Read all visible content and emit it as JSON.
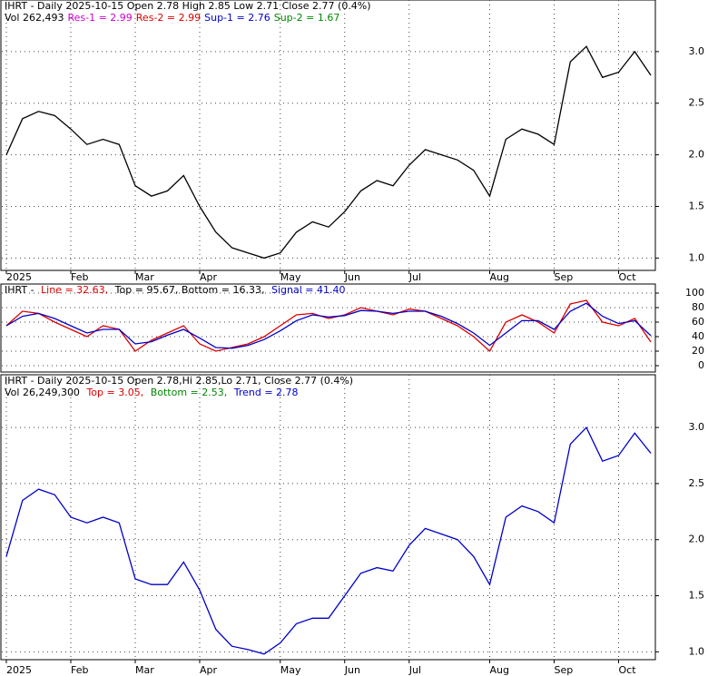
{
  "chart_data": [
    {
      "type": "line",
      "header": [
        [
          {
            "text": "IHRT - Daily 2025-10-15 Open 2.78  High 2.85  Low 2.71  Close 2.77 (0.4%)",
            "color": "#000000"
          }
        ],
        [
          {
            "text": "Vol 262,493",
            "color": "#000000"
          },
          {
            "text": "Res-1 = 2.99",
            "color": "#cc00cc"
          },
          {
            "text": "Res-2 = 2.99",
            "color": "#dd0000"
          },
          {
            "text": "Sup-1 = 2.76",
            "color": "#0000cc"
          },
          {
            "text": "Sup-2 = 1.67",
            "color": "#008800"
          }
        ]
      ],
      "categories": [
        "2025",
        null,
        null,
        null,
        "Feb",
        null,
        null,
        null,
        "Mar",
        null,
        null,
        null,
        "Apr",
        null,
        null,
        null,
        null,
        "May",
        null,
        null,
        null,
        "Jun",
        null,
        null,
        null,
        "Jul",
        null,
        null,
        null,
        null,
        "Aug",
        null,
        null,
        null,
        "Sep",
        null,
        null,
        null,
        "Oct",
        null,
        null
      ],
      "series": [
        {
          "name": "Close",
          "color": "#000000",
          "values": [
            2.0,
            2.35,
            2.42,
            2.38,
            2.25,
            2.1,
            2.15,
            2.1,
            1.7,
            1.6,
            1.65,
            1.8,
            1.5,
            1.25,
            1.1,
            1.05,
            1.0,
            1.05,
            1.25,
            1.35,
            1.3,
            1.45,
            1.65,
            1.75,
            1.7,
            1.9,
            2.05,
            2.0,
            1.95,
            1.85,
            1.6,
            2.15,
            2.25,
            2.2,
            2.1,
            2.9,
            3.05,
            2.75,
            2.8,
            3.0,
            2.77
          ]
        }
      ],
      "ylim": [
        0.88,
        3.5
      ],
      "yticks": [
        {
          "value": 1.0,
          "label": "1.0"
        },
        1.5,
        {
          "value": 2.0,
          "label": "2.0"
        },
        2.5,
        {
          "value": 3.0,
          "label": "3.0"
        }
      ],
      "grid": true
    },
    {
      "type": "line",
      "header": [
        [
          {
            "text": "IHRT - ",
            "color": "#000000"
          },
          {
            "text": "Line = 32.63,",
            "color": "#dd0000"
          },
          {
            "text": " Top = 95.67, Bottom = 16.33, ",
            "color": "#000000"
          },
          {
            "text": "Signal = 41.40",
            "color": "#0000cc"
          }
        ]
      ],
      "series": [
        {
          "name": "Line",
          "color": "#dd0000",
          "values": [
            55,
            75,
            72,
            60,
            50,
            40,
            55,
            50,
            20,
            35,
            45,
            55,
            30,
            20,
            25,
            30,
            40,
            55,
            70,
            72,
            65,
            70,
            80,
            75,
            70,
            78,
            75,
            65,
            55,
            40,
            20,
            60,
            70,
            60,
            45,
            85,
            90,
            60,
            55,
            65,
            32.63
          ]
        },
        {
          "name": "Signal",
          "color": "#0000cc",
          "values": [
            55,
            68,
            72,
            65,
            55,
            45,
            50,
            50,
            30,
            33,
            42,
            50,
            38,
            25,
            24,
            28,
            36,
            48,
            62,
            70,
            67,
            69,
            76,
            75,
            72,
            75,
            75,
            68,
            58,
            45,
            28,
            45,
            62,
            62,
            50,
            75,
            86,
            68,
            58,
            62,
            41.4
          ]
        }
      ],
      "ylim": [
        -8.75,
        112.5
      ],
      "yticks": [
        0,
        20,
        40,
        60,
        80,
        100
      ],
      "grid": true
    },
    {
      "type": "line",
      "header": [
        [
          {
            "text": "IHRT - Daily 2025-10-15 Open 2.78,Hi 2.85,Lo 2.71, Close 2.77 (0.4%)",
            "color": "#000000"
          }
        ],
        [
          {
            "text": "Vol 26,249,300 ",
            "color": "#000000"
          },
          {
            "text": "Top = 3.05,",
            "color": "#dd0000"
          },
          {
            "text": " Bottom = 2.53,",
            "color": "#008800"
          },
          {
            "text": " Trend = 2.78",
            "color": "#0000cc"
          }
        ]
      ],
      "categories": [
        "2025",
        null,
        null,
        null,
        "Feb",
        null,
        null,
        null,
        "Mar",
        null,
        null,
        null,
        "Apr",
        null,
        null,
        null,
        null,
        "May",
        null,
        null,
        null,
        "Jun",
        null,
        null,
        null,
        "Jul",
        null,
        null,
        null,
        null,
        "Aug",
        null,
        null,
        null,
        "Sep",
        null,
        null,
        null,
        "Oct",
        null,
        null
      ],
      "series": [
        {
          "name": "Close",
          "color": "#0000cc",
          "values": [
            1.85,
            2.35,
            2.45,
            2.4,
            2.2,
            2.15,
            2.2,
            2.15,
            1.65,
            1.6,
            1.6,
            1.8,
            1.55,
            1.2,
            1.05,
            1.02,
            0.98,
            1.08,
            1.25,
            1.3,
            1.3,
            1.5,
            1.7,
            1.75,
            1.72,
            1.95,
            2.1,
            2.05,
            2.0,
            1.85,
            1.6,
            2.2,
            2.3,
            2.25,
            2.15,
            2.85,
            3.0,
            2.7,
            2.75,
            2.95,
            2.77
          ]
        }
      ],
      "ylim": [
        0.93,
        3.47
      ],
      "yticks": [
        {
          "value": 1.0,
          "label": "1.0"
        },
        1.5,
        {
          "value": 2.0,
          "label": "2.0"
        },
        2.5,
        {
          "value": 3.0,
          "label": "3.0"
        }
      ],
      "grid": true
    }
  ]
}
